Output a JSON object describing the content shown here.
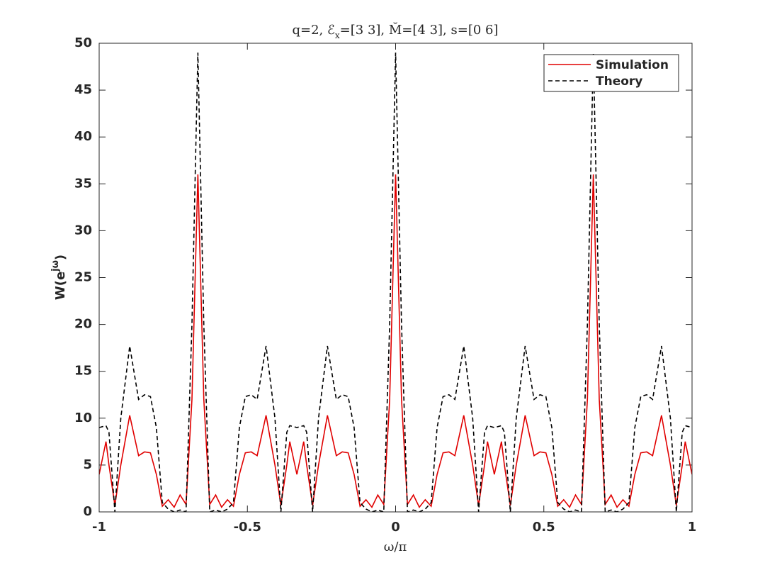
{
  "chart_data": {
    "type": "line",
    "title": [
      "q=2, ℰ",
      "x",
      "=[3 3], M̆=[4 3], s=[0 6]"
    ],
    "xlabel": "ω/π",
    "ylabel": [
      "W(e",
      "jω",
      ")"
    ],
    "x": [
      -1,
      -0.977,
      -0.967,
      -0.947,
      -0.927,
      -0.897,
      -0.867,
      -0.847,
      -0.827,
      -0.807,
      -0.787,
      -0.767,
      -0.747,
      -0.727,
      -0.707,
      -0.687,
      -0.667,
      -0.647,
      -0.627,
      -0.607,
      -0.587,
      -0.567,
      -0.547,
      -0.527,
      -0.507,
      -0.487,
      -0.467,
      -0.437,
      -0.407,
      -0.387,
      -0.367,
      -0.357,
      -0.333,
      -0.31,
      -0.3,
      -0.28,
      -0.26,
      -0.23,
      -0.2,
      -0.18,
      -0.16,
      -0.14,
      -0.12,
      -0.1,
      -0.08,
      -0.06,
      -0.04,
      -0.02,
      0,
      0.02,
      0.04,
      0.06,
      0.08,
      0.1,
      0.12,
      0.14,
      0.16,
      0.18,
      0.2,
      0.23,
      0.26,
      0.28,
      0.3,
      0.31,
      0.333,
      0.357,
      0.367,
      0.387,
      0.407,
      0.437,
      0.467,
      0.487,
      0.507,
      0.527,
      0.547,
      0.567,
      0.587,
      0.607,
      0.627,
      0.647,
      0.667,
      0.687,
      0.707,
      0.727,
      0.747,
      0.767,
      0.787,
      0.807,
      0.827,
      0.847,
      0.867,
      0.897,
      0.927,
      0.947,
      0.967,
      0.977,
      1
    ],
    "series": [
      {
        "name": "Simulation",
        "color": "#e00000",
        "dash": false,
        "values": [
          4,
          7.5,
          5,
          0.7,
          5,
          10.3,
          6,
          6.4,
          6.3,
          4,
          0.6,
          1.3,
          0.5,
          1.8,
          0.8,
          12,
          36,
          12,
          0.8,
          1.8,
          0.5,
          1.3,
          0.6,
          4,
          6.3,
          6.4,
          6,
          10.3,
          5,
          0.7,
          5,
          7.5,
          4,
          7.5,
          5,
          0.7,
          5,
          10.3,
          6,
          6.4,
          6.3,
          4,
          0.6,
          1.3,
          0.5,
          1.8,
          0.8,
          12,
          36,
          12,
          0.8,
          1.8,
          0.5,
          1.3,
          0.6,
          4,
          6.3,
          6.4,
          6,
          10.3,
          5,
          0.7,
          5,
          7.5,
          4,
          7.5,
          5,
          0.7,
          5,
          10.3,
          6,
          6.4,
          6.3,
          4,
          0.6,
          1.3,
          0.5,
          1.8,
          0.8,
          12,
          36,
          12,
          0.8,
          1.8,
          0.5,
          1.3,
          0.6,
          4,
          6.3,
          6.4,
          6,
          10.3,
          5,
          0.7,
          5,
          7.5,
          4
        ]
      },
      {
        "name": "Theory",
        "color": "#000000",
        "dash": true,
        "values": [
          9,
          9.2,
          8.5,
          0,
          10,
          17.7,
          12,
          12.5,
          12.3,
          9,
          1,
          0.3,
          0,
          0.2,
          0,
          20,
          49,
          20,
          0,
          0.2,
          0,
          0.3,
          1,
          9,
          12.3,
          12.5,
          12,
          17.7,
          10,
          0,
          8.5,
          9.2,
          9,
          9.2,
          8.5,
          0,
          10,
          17.7,
          12,
          12.5,
          12.3,
          9,
          1,
          0.3,
          0,
          0.2,
          0,
          20,
          49,
          20,
          0,
          0.2,
          0,
          0.3,
          1,
          9,
          12.3,
          12.5,
          12,
          17.7,
          10,
          0,
          8.5,
          9.2,
          9,
          9.2,
          8.5,
          0,
          10,
          17.7,
          12,
          12.5,
          12.3,
          9,
          1,
          0.3,
          0,
          0.2,
          0,
          20,
          49,
          20,
          0,
          0.2,
          0,
          0.3,
          1,
          9,
          12.3,
          12.5,
          12,
          17.7,
          10,
          0,
          8.5,
          9.2,
          9
        ]
      }
    ],
    "xlim": [
      -1,
      1
    ],
    "xticks": [
      -1,
      -0.5,
      0,
      0.5,
      1
    ],
    "ylim": [
      0,
      50
    ],
    "yticks": [
      0,
      5,
      10,
      15,
      20,
      25,
      30,
      35,
      40,
      45,
      50
    ],
    "grid": false,
    "legend": "top-right"
  }
}
